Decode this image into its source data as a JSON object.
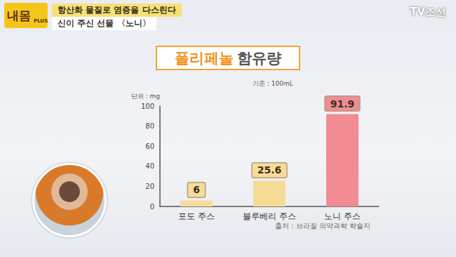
{
  "header": {
    "logo": "내몸",
    "logo_plus": "PLUS",
    "headline": "항산화 물질로 염증을 다스린다",
    "subheadline": "신이 주신 선물 〈노니〉",
    "channel": "TV조선"
  },
  "chart_data": {
    "type": "bar",
    "title": "폴리페놀 함유량",
    "subtitle": "기준 : 100mL",
    "ylabel": "단위 : mg",
    "categories": [
      "포도 주스",
      "블루베리 주스",
      "노니 주스"
    ],
    "values": [
      6,
      25.6,
      91.9
    ],
    "colors": [
      "#f7dc98",
      "#f7dc98",
      "#f28b93"
    ],
    "ylim": [
      0,
      100
    ],
    "yticks": [
      0,
      20,
      40,
      60,
      80,
      100
    ],
    "grid": false,
    "data_labels": true,
    "annotations": [
      "출처 : 브라질 의약과학 학술지"
    ]
  }
}
